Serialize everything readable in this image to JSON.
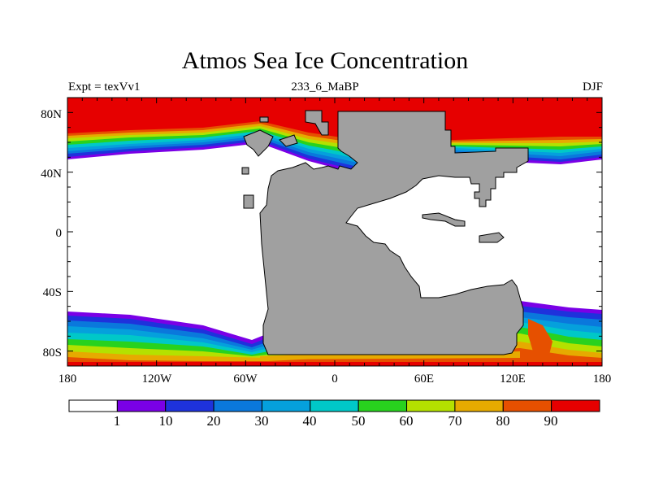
{
  "title": "Atmos Sea Ice Concentration",
  "subtitle_left": "Expt = texVv1",
  "subtitle_center": "233_6_MaBP",
  "subtitle_right": "DJF",
  "map": {
    "lon_range": [
      -180,
      180
    ],
    "lat_range": [
      -90,
      90
    ],
    "x_ticks": [
      "180",
      "120W",
      "60W",
      "0",
      "60E",
      "120E",
      "180"
    ],
    "y_ticks": [
      "80N",
      "40N",
      "0",
      "40S",
      "80S"
    ]
  },
  "colorbar": {
    "labels": [
      "1",
      "10",
      "20",
      "30",
      "40",
      "50",
      "60",
      "70",
      "80",
      "90"
    ],
    "colors": [
      "#ffffff",
      "#7a00e6",
      "#1e32dc",
      "#0a78dc",
      "#05a0dc",
      "#00c8c8",
      "#28d21e",
      "#b4e100",
      "#e6aa00",
      "#e65000",
      "#e60000"
    ]
  }
}
